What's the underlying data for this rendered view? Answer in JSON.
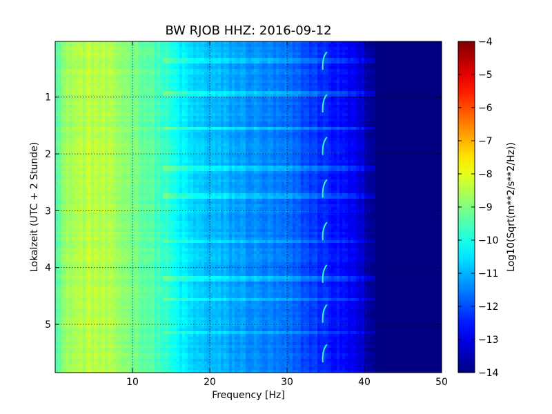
{
  "chart_data": {
    "type": "heatmap",
    "title": "BW RJOB HHZ: 2016-09-12",
    "xlabel": "Frequency [Hz]",
    "ylabel": "Lokalzeit (UTC + 2 Stunde)",
    "xlim": [
      0,
      50
    ],
    "ylim": [
      5.85,
      0.02
    ],
    "xticks": [
      {
        "value": 10,
        "label": "10"
      },
      {
        "value": 20,
        "label": "20"
      },
      {
        "value": 30,
        "label": "30"
      },
      {
        "value": 40,
        "label": "40"
      },
      {
        "value": 50,
        "label": "50"
      }
    ],
    "yticks": [
      {
        "value": 1,
        "label": "1"
      },
      {
        "value": 2,
        "label": "2"
      },
      {
        "value": 3,
        "label": "3"
      },
      {
        "value": 4,
        "label": "4"
      },
      {
        "value": 5,
        "label": "5"
      }
    ],
    "grid": true,
    "colormap": "jet",
    "colorbar": {
      "label": "Log10(Sqrt(m**2/s**2/Hz))",
      "range": [
        -14,
        -4
      ],
      "ticks": [
        {
          "value": -4,
          "label": "−4"
        },
        {
          "value": -5,
          "label": "−5"
        },
        {
          "value": -6,
          "label": "−6"
        },
        {
          "value": -7,
          "label": "−7"
        },
        {
          "value": -8,
          "label": "−8"
        },
        {
          "value": -9,
          "label": "−9"
        },
        {
          "value": -10,
          "label": "−10"
        },
        {
          "value": -11,
          "label": "−11"
        },
        {
          "value": -12,
          "label": "−12"
        },
        {
          "value": -13,
          "label": "−13"
        },
        {
          "value": -14,
          "label": "−14"
        }
      ]
    },
    "spectral_profile": {
      "frequency_hz": [
        0,
        2,
        5,
        8,
        10,
        12,
        14,
        16,
        18,
        20,
        25,
        30,
        35,
        38,
        40,
        41,
        42,
        50
      ],
      "log_amplitude": [
        -9.3,
        -8.6,
        -8.4,
        -8.7,
        -9.0,
        -9.3,
        -9.7,
        -10.3,
        -10.7,
        -10.9,
        -11.3,
        -11.7,
        -12.4,
        -12.8,
        -13.3,
        -13.9,
        -14.0,
        -14.0
      ]
    },
    "bright_bands_hours": [
      0.35,
      0.95,
      1.55,
      2.25,
      2.75,
      3.55,
      4.2,
      4.55,
      5.15
    ],
    "periodic_feature": {
      "frequency_hz": 34.8,
      "times_hours": [
        0.35,
        1.1,
        1.85,
        2.6,
        3.35,
        4.1,
        4.8,
        5.5
      ]
    }
  }
}
